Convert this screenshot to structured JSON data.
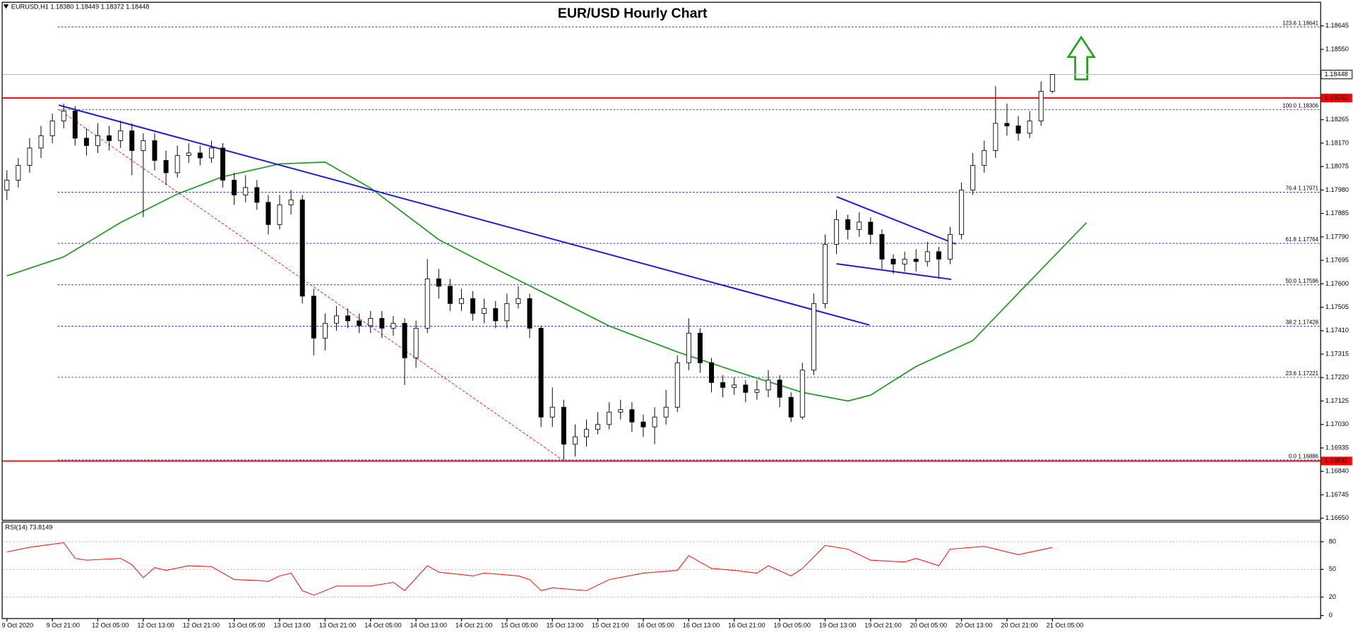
{
  "chart_data": {
    "type": "candlestick",
    "title": "EUR/USD Hourly Chart",
    "header": "EURUSD,H1 1.18380 1.18449 1.18372 1.18448",
    "up_color": "#ffffff",
    "down_color": "#000000",
    "categories": [
      "9 Oct 2020",
      null,
      null,
      null,
      "9 Oct 21:00",
      null,
      null,
      null,
      "12 Oct 05:00",
      null,
      null,
      null,
      "12 Oct 13:00",
      null,
      null,
      null,
      "12 Oct 21:00",
      null,
      null,
      null,
      "13 Oct 05:00",
      null,
      null,
      null,
      "13 Oct 13:00",
      null,
      null,
      null,
      "13 Oct 21:00",
      null,
      null,
      null,
      "14 Oct 05:00",
      null,
      null,
      null,
      "14 Oct 13:00",
      null,
      null,
      null,
      "14 Oct 21:00",
      null,
      null,
      null,
      "15 Oct 05:00",
      null,
      null,
      null,
      "15 Oct 13:00",
      null,
      null,
      null,
      "15 Oct 21:00",
      null,
      null,
      null,
      "16 Oct 05:00",
      null,
      null,
      null,
      "16 Oct 13:00",
      null,
      null,
      null,
      "16 Oct 21:00",
      null,
      null,
      null,
      "19 Oct 05:00",
      null,
      null,
      null,
      "19 Oct 13:00",
      null,
      null,
      null,
      "19 Oct 21:00",
      null,
      null,
      null,
      "20 Oct 05:00",
      null,
      null,
      null,
      "20 Oct 13:00",
      null,
      null,
      null,
      "20 Oct 21:00",
      null,
      null,
      null,
      "21 Oct 05:00"
    ],
    "open": [
      1.1798,
      1.1802,
      1.1808,
      1.1815,
      1.182,
      1.1826,
      1.183,
      1.1819,
      1.1816,
      1.182,
      1.1818,
      1.1822,
      1.1814,
      1.1818,
      1.181,
      1.1805,
      1.1812,
      1.1813,
      1.1811,
      1.1815,
      1.1802,
      1.1796,
      1.1799,
      1.1793,
      1.1784,
      1.1792,
      1.1794,
      1.1755,
      1.1738,
      1.1744,
      1.1747,
      1.1745,
      1.1743,
      1.1746,
      1.1742,
      1.1744,
      1.173,
      1.1742,
      1.1762,
      1.1759,
      1.1752,
      1.1754,
      1.1748,
      1.175,
      1.1745,
      1.1752,
      1.1754,
      1.1742,
      1.1706,
      1.171,
      1.1695,
      1.1698,
      1.1701,
      1.1703,
      1.1708,
      1.1709,
      1.1704,
      1.1702,
      1.1706,
      1.171,
      1.1728,
      1.174,
      1.1728,
      1.172,
      1.1718,
      1.1719,
      1.1716,
      1.1717,
      1.1721,
      1.1714,
      1.1706,
      1.1725,
      1.1752,
      1.1776,
      1.1786,
      1.1782,
      1.1785,
      1.178,
      1.177,
      1.1768,
      1.177,
      1.1769,
      1.1773,
      1.177,
      1.178,
      1.1798,
      1.1808,
      1.1814,
      1.1825,
      1.1824,
      1.1821,
      1.1826,
      1.1838
    ],
    "high": [
      1.1806,
      1.1811,
      1.1819,
      1.1824,
      1.1829,
      1.1833,
      1.1832,
      1.1823,
      1.1825,
      1.1824,
      1.1826,
      1.1825,
      1.1821,
      1.1821,
      1.1814,
      1.1816,
      1.1817,
      1.1816,
      1.1818,
      1.1817,
      1.1805,
      1.1804,
      1.1802,
      1.1796,
      1.1796,
      1.1798,
      1.1796,
      1.1758,
      1.1748,
      1.1751,
      1.175,
      1.1748,
      1.1749,
      1.1749,
      1.1747,
      1.1746,
      1.1745,
      1.177,
      1.1766,
      1.1762,
      1.1758,
      1.1757,
      1.1754,
      1.1753,
      1.1756,
      1.1759,
      1.1756,
      1.1743,
      1.1718,
      1.1713,
      1.1703,
      1.1705,
      1.1708,
      1.1712,
      1.1713,
      1.1712,
      1.1707,
      1.171,
      1.1717,
      1.1731,
      1.1746,
      1.1742,
      1.173,
      1.1723,
      1.1722,
      1.1721,
      1.1721,
      1.1725,
      1.1723,
      1.1716,
      1.1728,
      1.1756,
      1.178,
      1.179,
      1.1788,
      1.1789,
      1.1787,
      1.1782,
      1.1772,
      1.1773,
      1.1774,
      1.1777,
      1.1775,
      1.1783,
      1.1801,
      1.1813,
      1.1818,
      1.184,
      1.1833,
      1.1828,
      1.183,
      1.1842,
      1.18449
    ],
    "low": [
      1.1794,
      1.1799,
      1.1805,
      1.1811,
      1.1817,
      1.1823,
      1.1816,
      1.1812,
      1.1813,
      1.1814,
      1.1815,
      1.1804,
      1.1787,
      1.1806,
      1.18,
      1.1803,
      1.1809,
      1.1808,
      1.1809,
      1.1799,
      1.1792,
      1.1793,
      1.179,
      1.178,
      1.1782,
      1.1788,
      1.1752,
      1.1731,
      1.1733,
      1.1741,
      1.1742,
      1.174,
      1.174,
      1.1738,
      1.1739,
      1.1719,
      1.1726,
      1.174,
      1.1754,
      1.1749,
      1.1749,
      1.1745,
      1.1744,
      1.1742,
      1.1742,
      1.175,
      1.1738,
      1.1702,
      1.1702,
      1.16886,
      1.169,
      1.1694,
      1.1699,
      1.1701,
      1.1705,
      1.17,
      1.1698,
      1.1695,
      1.1703,
      1.1708,
      1.1725,
      1.1724,
      1.1716,
      1.1714,
      1.1715,
      1.1712,
      1.1713,
      1.1714,
      1.171,
      1.1704,
      1.1705,
      1.1723,
      1.175,
      1.1772,
      1.1778,
      1.1779,
      1.1776,
      1.1766,
      1.1764,
      1.1765,
      1.1765,
      1.1767,
      1.1762,
      1.1768,
      1.1778,
      1.1796,
      1.1805,
      1.1811,
      1.182,
      1.1818,
      1.1819,
      1.1824,
      1.18372
    ],
    "close": [
      1.1802,
      1.1808,
      1.1815,
      1.182,
      1.1826,
      1.183,
      1.1819,
      1.1816,
      1.182,
      1.1818,
      1.1822,
      1.1814,
      1.1818,
      1.181,
      1.1805,
      1.1812,
      1.1813,
      1.1811,
      1.1815,
      1.1802,
      1.1796,
      1.1799,
      1.1793,
      1.1784,
      1.1792,
      1.1794,
      1.1755,
      1.1738,
      1.1744,
      1.1747,
      1.1745,
      1.1743,
      1.1746,
      1.1742,
      1.1744,
      1.173,
      1.1742,
      1.1762,
      1.1759,
      1.1752,
      1.1754,
      1.1748,
      1.175,
      1.1745,
      1.1752,
      1.1754,
      1.1742,
      1.1706,
      1.171,
      1.1695,
      1.1698,
      1.1701,
      1.1703,
      1.1708,
      1.1709,
      1.1704,
      1.1702,
      1.1706,
      1.171,
      1.1728,
      1.174,
      1.1728,
      1.172,
      1.1718,
      1.1719,
      1.1716,
      1.1717,
      1.1721,
      1.1714,
      1.1706,
      1.1725,
      1.1752,
      1.1776,
      1.1786,
      1.1782,
      1.1785,
      1.178,
      1.177,
      1.1768,
      1.177,
      1.1769,
      1.1773,
      1.177,
      1.178,
      1.1798,
      1.1808,
      1.1814,
      1.1825,
      1.1824,
      1.1821,
      1.1826,
      1.1838,
      1.18448
    ],
    "ylim": [
      1.1664,
      1.18739
    ],
    "yticks": [
      1.18645,
      {
        "value": 1.1855,
        "label": "1.18550"
      },
      1.18265,
      {
        "value": 1.1817,
        "label": "1.18170"
      },
      1.18075,
      {
        "value": 1.1798,
        "label": "1.17980"
      },
      1.17885,
      {
        "value": 1.1779,
        "label": "1.17790"
      },
      1.17695,
      {
        "value": 1.176,
        "label": "1.17600"
      },
      1.17505,
      {
        "value": 1.1741,
        "label": "1.17410"
      },
      1.17315,
      {
        "value": 1.1722,
        "label": "1.17220"
      },
      1.17125,
      {
        "value": 1.1703,
        "label": "1.17030"
      },
      1.16935,
      {
        "value": 1.1684,
        "label": "1.16840"
      },
      1.16745,
      {
        "value": 1.1665,
        "label": "1.16650"
      }
    ],
    "levels": [
      {
        "price": 1.18353,
        "color": "#ff0000"
      },
      {
        "price": 1.16882,
        "color": "#ff0000"
      }
    ],
    "current_color": "#c0c0c0",
    "fib_color": "#1f1fd0",
    "fib_levels": [
      {
        "level": "123.6",
        "price": 1.18641
      },
      {
        "level": "100.0",
        "price": 1.18306
      },
      {
        "level": "76.4",
        "price": 1.17971
      },
      {
        "level": "61.8",
        "price": 1.17764
      },
      {
        "level": "50.0",
        "price": 1.17596
      },
      {
        "level": "38.2",
        "price": 1.17428
      },
      {
        "level": "23.6",
        "price": 1.17221
      },
      {
        "level": "0.0",
        "price": 1.16886
      }
    ],
    "trendlines": [
      {
        "x": [
          4.56,
          75.9
        ],
        "values": [
          1.18324,
          1.17433
        ],
        "color": "#1a1ad8",
        "style": "solid"
      },
      {
        "x": [
          73,
          83.5
        ],
        "values": [
          1.17953,
          1.17761
        ],
        "color": "#1a1ad8",
        "style": "solid"
      },
      {
        "x": [
          73,
          83.1
        ],
        "values": [
          1.17681,
          1.17618
        ],
        "color": "#1a1ad8",
        "style": "solid"
      },
      {
        "x": [
          4.56,
          48.9
        ],
        "values": [
          1.18306,
          1.16886
        ],
        "color": "#ff0000",
        "style": "dashed"
      }
    ],
    "ma": {
      "color": "#1f9a1f",
      "x": [
        0,
        5,
        10,
        15,
        19,
        24,
        28,
        32,
        38,
        42,
        47,
        53,
        59,
        64,
        70,
        74,
        76,
        80,
        85,
        89,
        95
      ],
      "values": [
        1.17632,
        1.17709,
        1.17848,
        1.17964,
        1.18034,
        1.18086,
        1.18093,
        1.17988,
        1.17779,
        1.17684,
        1.17569,
        1.17429,
        1.17324,
        1.17247,
        1.1716,
        1.17125,
        1.17149,
        1.17265,
        1.1737,
        1.17562,
        1.17848
      ]
    },
    "rsi": {
      "label": "RSI(14) 73.8149",
      "color": "#ff0000",
      "ylim": [
        0,
        100
      ],
      "yticks": [
        80,
        50,
        20,
        0
      ],
      "x": [
        0,
        2,
        5,
        6,
        7,
        10,
        11,
        12,
        13,
        14,
        16,
        18,
        20,
        22,
        23,
        24,
        25,
        26,
        27,
        29,
        32,
        34,
        35,
        37,
        38,
        41,
        42,
        45,
        46,
        47,
        48,
        51,
        53,
        56,
        59,
        60,
        62,
        64,
        66,
        67,
        69,
        70,
        72,
        74,
        76,
        79,
        80,
        82,
        83,
        86,
        89,
        92
      ],
      "values": [
        69,
        74,
        79,
        62,
        60,
        62,
        55,
        41,
        52,
        49,
        54,
        53,
        39,
        38,
        37,
        43,
        46,
        27,
        22,
        32,
        32,
        36,
        27,
        54,
        47,
        43,
        46,
        43,
        39,
        27,
        30,
        27,
        39,
        46,
        49,
        65,
        51,
        49,
        46,
        54,
        43,
        51,
        76,
        72,
        60,
        58,
        62,
        54,
        72,
        75,
        66,
        73.8149
      ]
    }
  }
}
